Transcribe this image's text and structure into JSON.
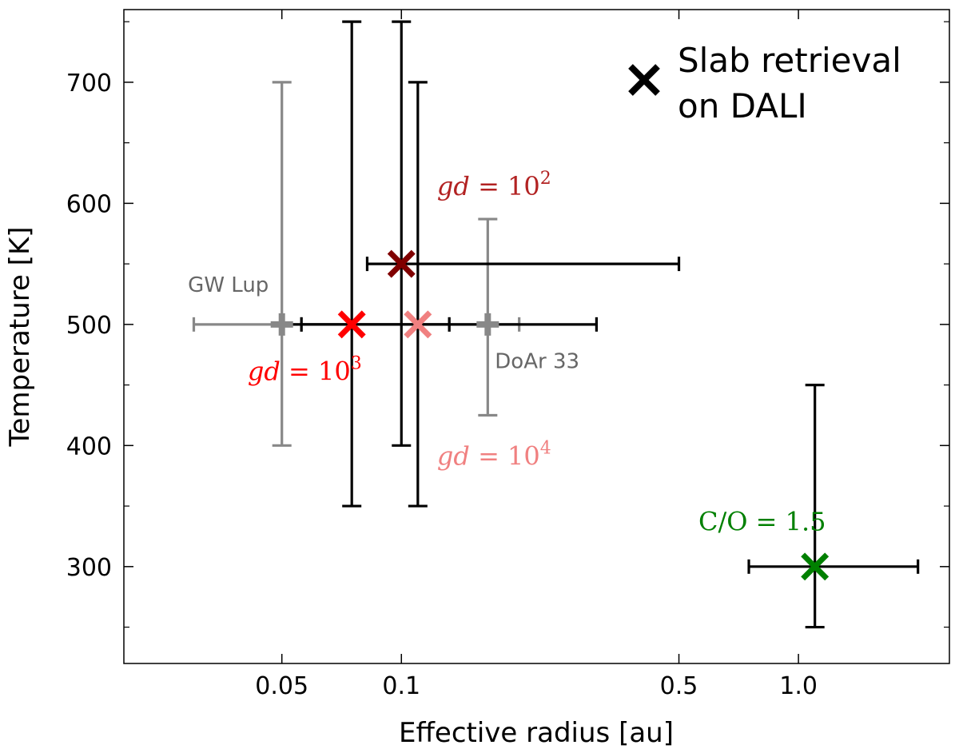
{
  "chart_data": {
    "type": "scatter",
    "xlabel": "Effective radius [au]",
    "ylabel": "Temperature [K]",
    "xscale": "log",
    "xlim": [
      0.02,
      2.4
    ],
    "ylim": [
      220,
      760
    ],
    "grid": false,
    "legend_position": "top-right",
    "legend": {
      "text_line1": "Slab retrieval",
      "text_line2": "on DALI",
      "marker": "x",
      "color": "#000000"
    },
    "x_ticks": [
      {
        "value": 0.05,
        "label": "0.05"
      },
      {
        "value": 0.1,
        "label": "0.1"
      },
      {
        "value": 0.5,
        "label": "0.5"
      },
      {
        "value": 1.0,
        "label": "1.0"
      }
    ],
    "y_ticks": [
      {
        "value": 300,
        "label": "300"
      },
      {
        "value": 400,
        "label": "400"
      },
      {
        "value": 500,
        "label": "500"
      },
      {
        "value": 600,
        "label": "600"
      },
      {
        "value": 700,
        "label": "700"
      }
    ],
    "points": [
      {
        "x": 0.05,
        "y": 500,
        "x_err": [
          0.03,
          0.056
        ],
        "y_err": [
          400,
          700
        ],
        "marker": "+",
        "color": "#888888",
        "err_color": "#888888"
      },
      {
        "x": 0.165,
        "y": 500,
        "x_err": [
          0.132,
          0.198
        ],
        "y_err": [
          425,
          587
        ],
        "marker": "+",
        "color": "#888888",
        "err_color": "#888888"
      },
      {
        "x": 0.075,
        "y": 500,
        "x_err": [
          0.056,
          0.31
        ],
        "y_err": [
          350,
          750
        ],
        "marker": "x",
        "color": "#ff0000",
        "err_color": "#000000"
      },
      {
        "x": 0.1,
        "y": 550,
        "x_err": [
          0.082,
          0.5
        ],
        "y_err": [
          400,
          750
        ],
        "marker": "x",
        "color": "#800000",
        "err_color": "#000000"
      },
      {
        "x": 0.11,
        "y": 500,
        "x_err": [
          0.05,
          0.132
        ],
        "y_err": [
          350,
          700
        ],
        "marker": "x",
        "color": "#f08080",
        "err_color": "#000000"
      },
      {
        "x": 1.1,
        "y": 300,
        "x_err": [
          0.75,
          2.0
        ],
        "y_err": [
          250,
          450
        ],
        "marker": "x",
        "color": "#008000",
        "err_color": "#000000"
      }
    ],
    "annotations": [
      {
        "text": "GW Lup",
        "x": 0.029,
        "y": 527,
        "color": "#666666",
        "style": "sans"
      },
      {
        "text": "DoAr 33",
        "x": 0.172,
        "y": 464,
        "color": "#666666",
        "style": "sans"
      },
      {
        "text": "gd = 10",
        "sup": "2",
        "x": 0.123,
        "y": 607,
        "color": "#b22222",
        "style": "serif"
      },
      {
        "text": "gd = 10",
        "sup": "3",
        "x": 0.041,
        "y": 454,
        "color": "#ff0000",
        "style": "serif"
      },
      {
        "text": "gd = 10",
        "sup": "4",
        "x": 0.123,
        "y": 384,
        "color": "#f08080",
        "style": "serif"
      },
      {
        "text": "C/O = 1.5",
        "x": 0.56,
        "y": 330,
        "color": "#008000",
        "style": "serif"
      }
    ]
  }
}
